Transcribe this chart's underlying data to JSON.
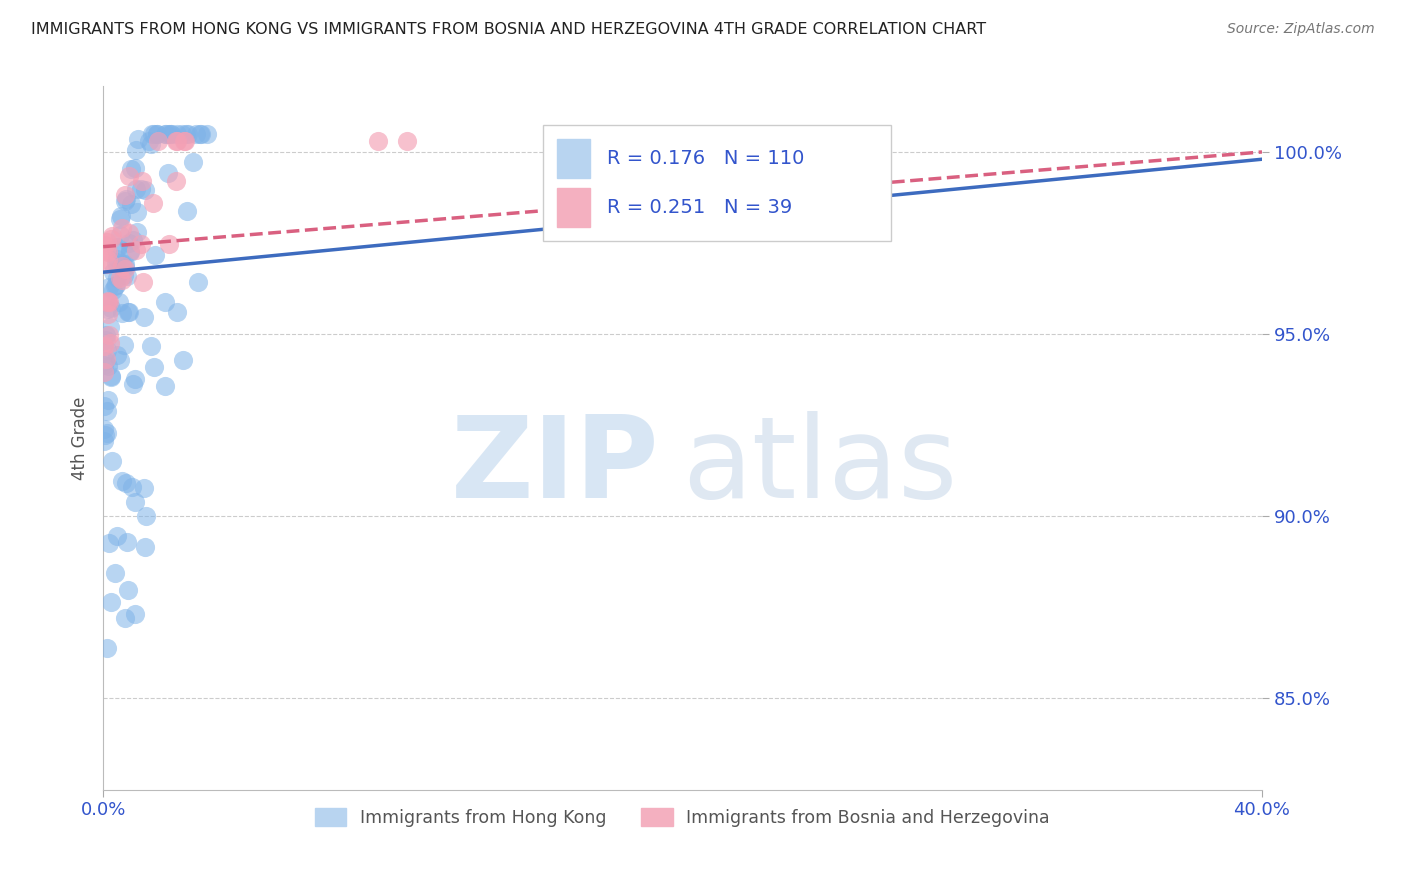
{
  "title": "IMMIGRANTS FROM HONG KONG VS IMMIGRANTS FROM BOSNIA AND HERZEGOVINA 4TH GRADE CORRELATION CHART",
  "source": "Source: ZipAtlas.com",
  "ylabel": "4th Grade",
  "ytick_labels": [
    "100.0%",
    "95.0%",
    "90.0%",
    "85.0%"
  ],
  "ytick_values": [
    1.0,
    0.95,
    0.9,
    0.85
  ],
  "xlim": [
    0.0,
    0.4
  ],
  "ylim": [
    0.825,
    1.018
  ],
  "hk_R": 0.176,
  "hk_N": 110,
  "bh_R": 0.251,
  "bh_N": 39,
  "hk_color": "#7fb3e8",
  "bh_color": "#f4a0b5",
  "hk_line_color": "#3d6bbf",
  "bh_line_color": "#d96080",
  "legend_label_hk": "Immigrants from Hong Kong",
  "legend_label_bh": "Immigrants from Bosnia and Herzegovina",
  "watermark_zip": "ZIP",
  "watermark_atlas": "atlas",
  "title_color": "#333333",
  "axis_color": "#3355cc",
  "grid_color": "#cccccc",
  "source_color": "#777777"
}
